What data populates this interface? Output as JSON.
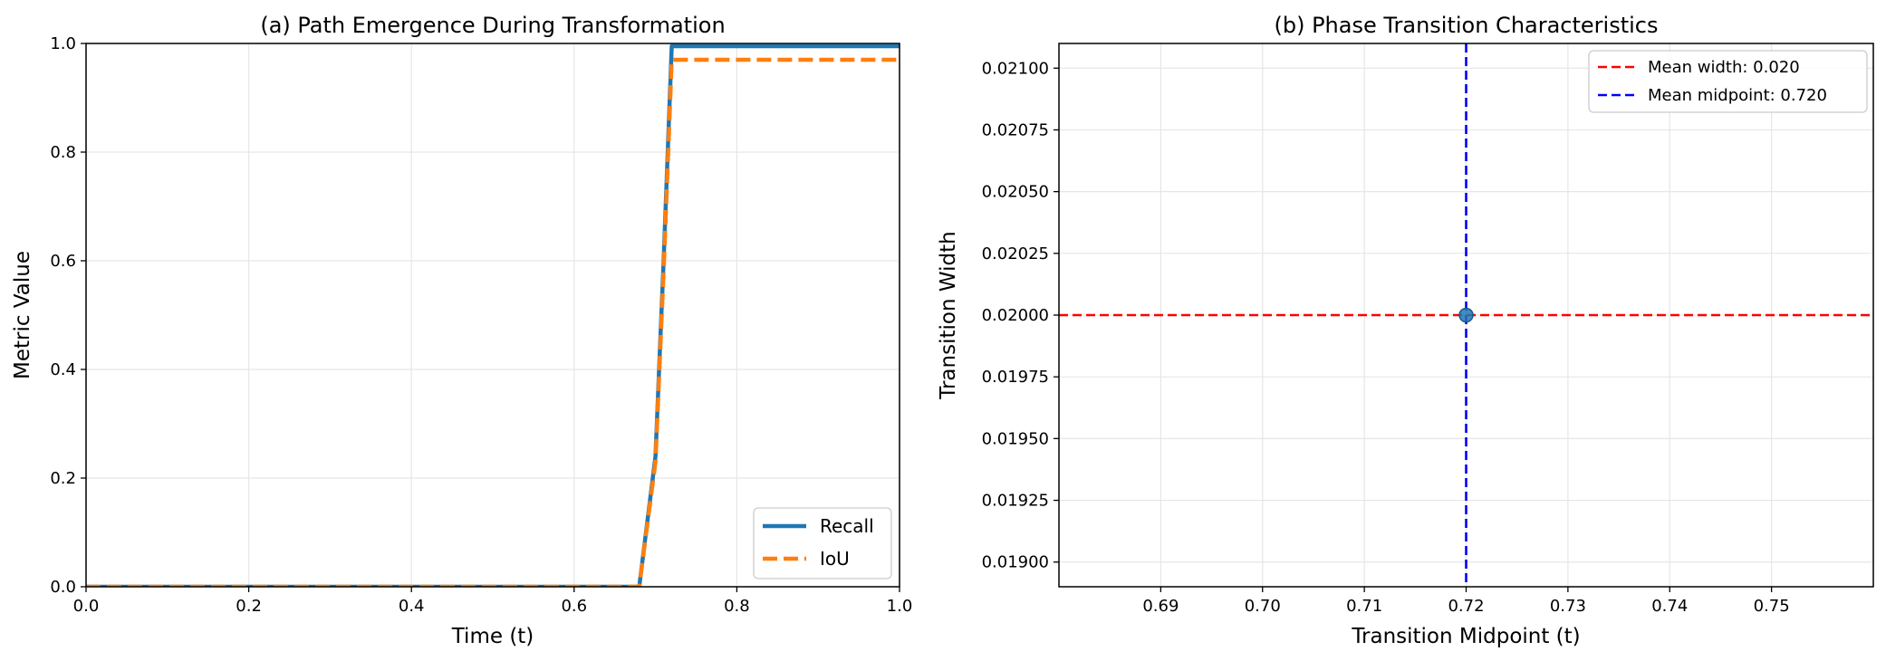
{
  "chart_data": [
    {
      "type": "line",
      "title": "(a) Path Emergence During Transformation",
      "xlabel": "Time (t)",
      "ylabel": "Metric Value",
      "xlim": [
        0,
        1
      ],
      "ylim": [
        0,
        1
      ],
      "xticks": [
        0.0,
        0.2,
        0.4,
        0.6,
        0.8,
        1.0
      ],
      "xtick_labels": [
        "0.0",
        "0.2",
        "0.4",
        "0.6",
        "0.8",
        "1.0"
      ],
      "yticks": [
        0.0,
        0.2,
        0.4,
        0.6,
        0.8,
        1.0
      ],
      "ytick_labels": [
        "0.0",
        "0.2",
        "0.4",
        "0.6",
        "0.8",
        "1.0"
      ],
      "grid": true,
      "legend": "lower-right",
      "series": [
        {
          "name": "Recall",
          "color": "#1f77b4",
          "style": "solid",
          "x": [
            0.0,
            0.68,
            0.7,
            0.71,
            0.72,
            1.0
          ],
          "y": [
            0.0,
            0.0,
            0.24,
            0.6,
            0.995,
            0.995
          ]
        },
        {
          "name": "IoU",
          "color": "#ff7f0e",
          "style": "dashed",
          "x": [
            0.0,
            0.68,
            0.7,
            0.71,
            0.72,
            1.0
          ],
          "y": [
            0.0,
            0.0,
            0.23,
            0.58,
            0.97,
            0.97
          ]
        }
      ]
    },
    {
      "type": "scatter",
      "title": "(b) Phase Transition Characteristics",
      "xlabel": "Transition Midpoint (t)",
      "ylabel": "Transition Width",
      "xlim": [
        0.68,
        0.76
      ],
      "ylim": [
        0.0189,
        0.0211
      ],
      "xticks": [
        0.69,
        0.7,
        0.71,
        0.72,
        0.73,
        0.74,
        0.75
      ],
      "xtick_labels": [
        "0.69",
        "0.70",
        "0.71",
        "0.72",
        "0.73",
        "0.74",
        "0.75"
      ],
      "yticks": [
        0.019,
        0.01925,
        0.0195,
        0.01975,
        0.02,
        0.02025,
        0.0205,
        0.02075,
        0.021
      ],
      "ytick_labels": [
        "0.01900",
        "0.01925",
        "0.01950",
        "0.01975",
        "0.02000",
        "0.02025",
        "0.02050",
        "0.02075",
        "0.02100"
      ],
      "grid": true,
      "legend": "upper-right",
      "points": [
        {
          "x": 0.72,
          "y": 0.02
        }
      ],
      "point_color": "#1f77b4",
      "reference_lines": [
        {
          "name": "Mean width: 0.020",
          "orientation": "horizontal",
          "value": 0.02,
          "color": "#ff0000",
          "style": "dashed"
        },
        {
          "name": "Mean midpoint: 0.720",
          "orientation": "vertical",
          "value": 0.72,
          "color": "#0000ff",
          "style": "dashed"
        }
      ]
    }
  ]
}
